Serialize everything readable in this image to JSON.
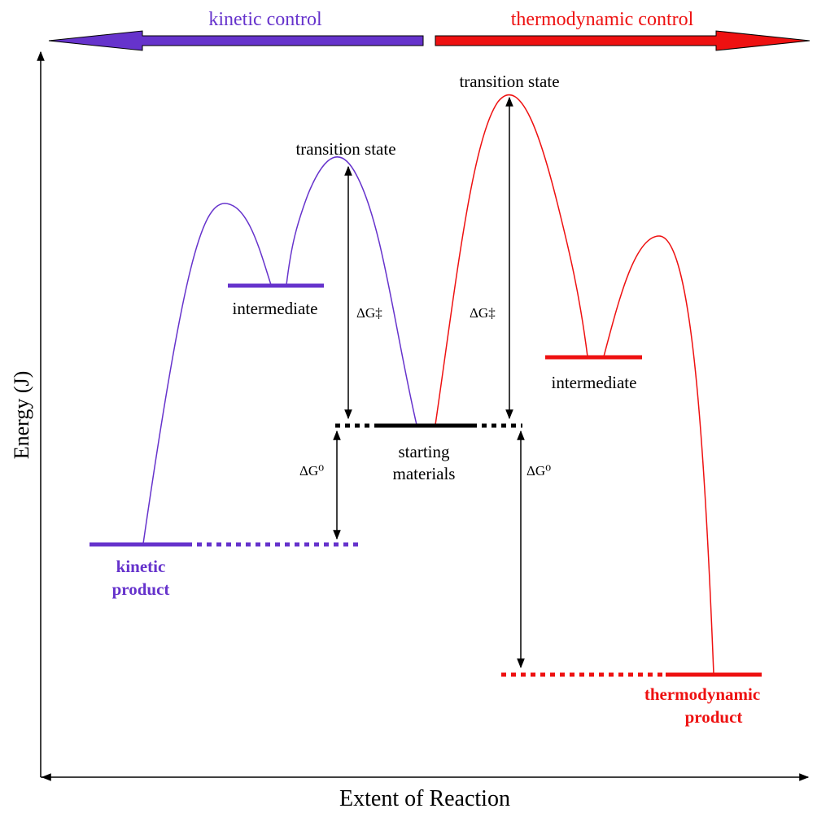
{
  "colors": {
    "kinetic": "#6633cc",
    "thermo": "#ee1111",
    "black": "#000000"
  },
  "banner": {
    "kinetic_label": "kinetic control",
    "thermo_label": "thermodynamic control"
  },
  "axes": {
    "ylabel": "Energy (J)",
    "xlabel": "Extent of Reaction"
  },
  "labels": {
    "ts_kinetic": "transition state",
    "ts_thermo": "transition state",
    "int_kinetic": "intermediate",
    "int_thermo": "intermediate",
    "start_line1": "starting",
    "start_line2": "materials",
    "kinetic_line1": "kinetic",
    "kinetic_line2": "product",
    "thermo_line1": "thermodynamic",
    "thermo_line2": "product",
    "dg_act_left": "ΔG‡",
    "dg_act_right": "ΔG‡",
    "dg0_left": "ΔG⁰",
    "dg0_right": "ΔG⁰"
  }
}
